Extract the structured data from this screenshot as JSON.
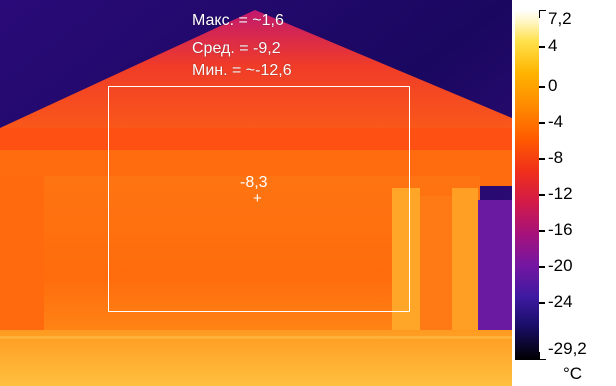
{
  "measurements": {
    "max_label": "Макс. = ~1,6",
    "avg_label": "Сред. = -9,2",
    "min_label": "Мин. = ~-12,6",
    "spot_value": "-8,3"
  },
  "scale": {
    "labels": [
      "7,2",
      "4",
      "0",
      "-4",
      "-8",
      "-12",
      "-16",
      "-20",
      "-24",
      "-29,2"
    ],
    "unit": "°C"
  },
  "colors": {
    "sky": "#1b0a6e",
    "roof": "#ff5a10",
    "wall": "#ff7a14",
    "overlay": "#ffffff"
  }
}
